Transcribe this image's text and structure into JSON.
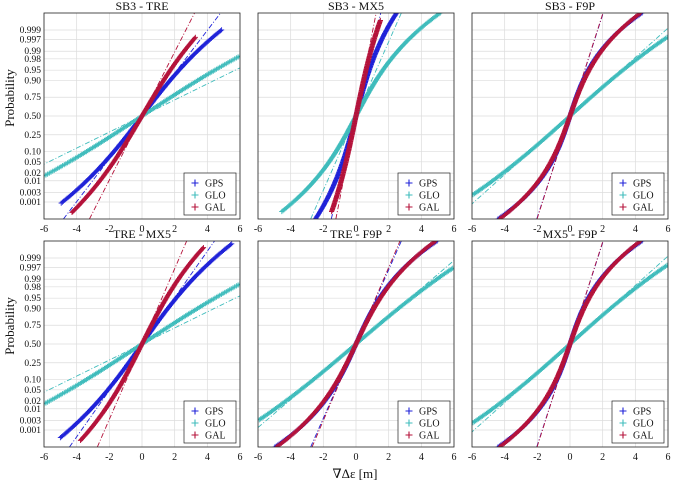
{
  "figure": {
    "xlabel": "∇Δε [m]",
    "ylabel": "Probability"
  },
  "chart_data": [
    {
      "type": "scatter",
      "title": "SB3 - TRE",
      "xlim": [
        -6,
        6
      ],
      "xticks": [
        -6,
        -4,
        -2,
        0,
        2,
        4,
        6
      ],
      "yticks": [
        "0.001",
        "0.003",
        "0.01",
        "0.02",
        "0.05",
        "0.10",
        "0.25",
        "0.50",
        "0.75",
        "0.90",
        "0.95",
        "0.98",
        "0.99",
        "0.997",
        "0.999"
      ],
      "legend": "bottom-right",
      "grid": true,
      "series": [
        {
          "name": "GPS",
          "color": "#1f22d8",
          "sigma": 1.3,
          "tail": 1.6,
          "xmin": -5.0,
          "xmax": 4.9,
          "refslope": 1.0
        },
        {
          "name": "GLO",
          "color": "#3fbcbc",
          "sigma": 2.6,
          "tail": 2.2,
          "xmin": -6,
          "xmax": 6,
          "refslope": 0.75
        },
        {
          "name": "GAL",
          "color": "#b4123a",
          "sigma": 1.0,
          "tail": 1.1,
          "xmin": -4.3,
          "xmax": 3.3,
          "refslope": 1.15
        }
      ]
    },
    {
      "type": "scatter",
      "title": "SB3 - MX5",
      "xlim": [
        -6,
        6
      ],
      "xticks": [
        -6,
        -4,
        -2,
        0,
        2,
        4,
        6
      ],
      "yticks": [
        "0.001",
        "0.003",
        "0.01",
        "0.02",
        "0.05",
        "0.10",
        "0.25",
        "0.50",
        "0.75",
        "0.90",
        "0.95",
        "0.98",
        "0.99",
        "0.997",
        "0.999"
      ],
      "legend": "bottom-right",
      "grid": true,
      "series": [
        {
          "name": "GPS",
          "color": "#1f22d8",
          "sigma": 0.45,
          "tail": 0.9,
          "xmin": -4.8,
          "xmax": 2.8,
          "refslope": 1.1
        },
        {
          "name": "GLO",
          "color": "#3fbcbc",
          "sigma": 0.9,
          "tail": 2.0,
          "xmin": -4.6,
          "xmax": 5.7,
          "refslope": 1.2
        },
        {
          "name": "GAL",
          "color": "#b4123a",
          "sigma": 0.35,
          "tail": 0.4,
          "xmin": -1.5,
          "xmax": 1.5,
          "refslope": 1.05
        }
      ]
    },
    {
      "type": "scatter",
      "title": "SB3 - F9P",
      "xlim": [
        -6,
        6
      ],
      "xticks": [
        -6,
        -4,
        -2,
        0,
        2,
        4,
        6
      ],
      "yticks": [
        "0.001",
        "0.003",
        "0.01",
        "0.02",
        "0.05",
        "0.10",
        "0.25",
        "0.50",
        "0.75",
        "0.90",
        "0.95",
        "0.98",
        "0.99",
        "0.997",
        "0.999"
      ],
      "legend": "bottom-right",
      "grid": true,
      "series": [
        {
          "name": "GPS",
          "color": "#1f22d8",
          "sigma": 0.55,
          "tail": 2.6,
          "xmin": -6,
          "xmax": 6,
          "refslope": 1.0
        },
        {
          "name": "GLO",
          "color": "#3fbcbc",
          "sigma": 1.9,
          "tail": 1.4,
          "xmin": -6,
          "xmax": 6,
          "refslope": 1.0
        },
        {
          "name": "GAL",
          "color": "#b4123a",
          "sigma": 0.6,
          "tail": 2.3,
          "xmin": -6,
          "xmax": 6,
          "refslope": 1.1
        }
      ]
    },
    {
      "type": "scatter",
      "title": "TRE - MX5",
      "xlim": [
        -6,
        6
      ],
      "xticks": [
        -6,
        -4,
        -2,
        0,
        2,
        4,
        6
      ],
      "yticks": [
        "0.001",
        "0.003",
        "0.01",
        "0.02",
        "0.05",
        "0.10",
        "0.25",
        "0.50",
        "0.75",
        "0.90",
        "0.95",
        "0.98",
        "0.99",
        "0.997",
        "0.999"
      ],
      "legend": "bottom-right",
      "grid": true,
      "series": [
        {
          "name": "GPS",
          "color": "#1f22d8",
          "sigma": 1.2,
          "tail": 1.4,
          "xmin": -5.0,
          "xmax": 5.5,
          "refslope": 1.0
        },
        {
          "name": "GLO",
          "color": "#3fbcbc",
          "sigma": 2.6,
          "tail": 2.2,
          "xmin": -6,
          "xmax": 6,
          "refslope": 0.75
        },
        {
          "name": "GAL",
          "color": "#b4123a",
          "sigma": 0.85,
          "tail": 1.1,
          "xmin": -3.8,
          "xmax": 3.8,
          "refslope": 1.15
        }
      ]
    },
    {
      "type": "scatter",
      "title": "TRE - F9P",
      "xlim": [
        -6,
        6
      ],
      "xticks": [
        -6,
        -4,
        -2,
        0,
        2,
        4,
        6
      ],
      "yticks": [
        "0.001",
        "0.003",
        "0.01",
        "0.02",
        "0.05",
        "0.10",
        "0.25",
        "0.50",
        "0.75",
        "0.90",
        "0.95",
        "0.98",
        "0.99",
        "0.997",
        "0.999"
      ],
      "legend": "bottom-right",
      "grid": true,
      "series": [
        {
          "name": "GPS",
          "color": "#1f22d8",
          "sigma": 0.75,
          "tail": 2.4,
          "xmin": -6,
          "xmax": 6,
          "refslope": 1.0
        },
        {
          "name": "GLO",
          "color": "#3fbcbc",
          "sigma": 2.0,
          "tail": 1.3,
          "xmin": -6,
          "xmax": 6,
          "refslope": 1.0
        },
        {
          "name": "GAL",
          "color": "#b4123a",
          "sigma": 0.8,
          "tail": 2.1,
          "xmin": -6,
          "xmax": 6,
          "refslope": 1.1
        }
      ]
    },
    {
      "type": "scatter",
      "title": "MX5 - F9P",
      "xlim": [
        -6,
        6
      ],
      "xticks": [
        -6,
        -4,
        -2,
        0,
        2,
        4,
        6
      ],
      "yticks": [
        "0.001",
        "0.003",
        "0.01",
        "0.02",
        "0.05",
        "0.10",
        "0.25",
        "0.50",
        "0.75",
        "0.90",
        "0.95",
        "0.98",
        "0.99",
        "0.997",
        "0.999"
      ],
      "legend": "bottom-right",
      "grid": true,
      "series": [
        {
          "name": "GPS",
          "color": "#1f22d8",
          "sigma": 0.55,
          "tail": 2.6,
          "xmin": -6,
          "xmax": 6,
          "refslope": 1.0
        },
        {
          "name": "GLO",
          "color": "#3fbcbc",
          "sigma": 1.9,
          "tail": 1.4,
          "xmin": -6,
          "xmax": 6,
          "refslope": 1.0
        },
        {
          "name": "GAL",
          "color": "#b4123a",
          "sigma": 0.6,
          "tail": 2.3,
          "xmin": -6,
          "xmax": 6,
          "refslope": 1.1
        }
      ]
    }
  ]
}
